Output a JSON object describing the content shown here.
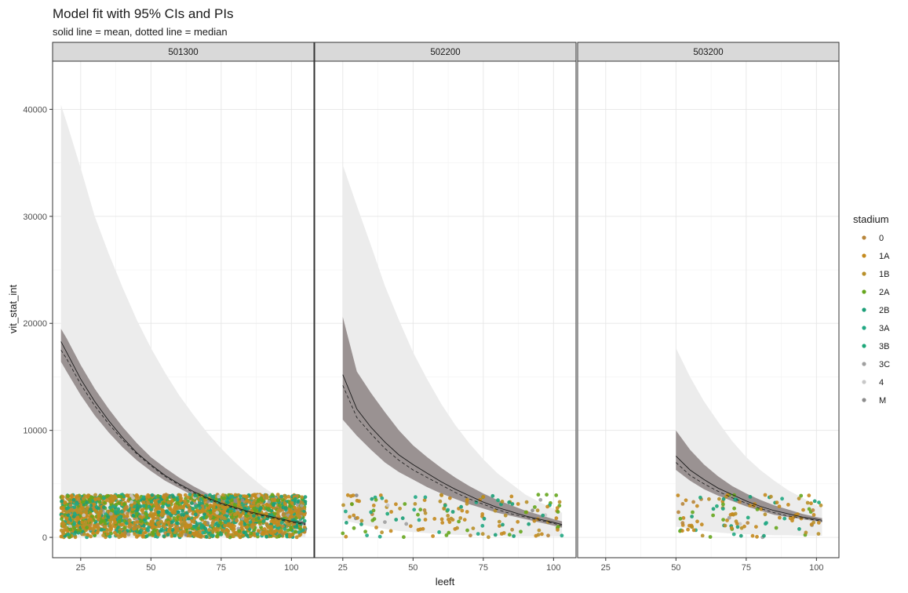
{
  "chart_data": {
    "type": "line",
    "title": "Model fit with 95% CIs and PIs",
    "subtitle": "solid line = mean, dotted line = median",
    "xlabel": "leeft",
    "ylabel": "vit_stat_int",
    "xlim": [
      15,
      108
    ],
    "ylim": [
      -1900,
      44500
    ],
    "x_ticks": [
      25,
      50,
      75,
      100
    ],
    "y_ticks": [
      0,
      10000,
      20000,
      30000,
      40000
    ],
    "grid": true,
    "legend": {
      "title": "stadium",
      "position": "right",
      "entries": [
        "0",
        "1A",
        "1B",
        "2A",
        "2B",
        "3A",
        "3B",
        "3C",
        "4",
        "M"
      ],
      "colors": [
        "#b8863b",
        "#c48a1e",
        "#b8902a",
        "#66a61e",
        "#1b9e77",
        "#22a884",
        "#1ea87a",
        "#a0a0a0",
        "#c8c8c8",
        "#8c8c8c"
      ]
    },
    "band_colors": {
      "pi": "#ebebeb",
      "ci": "#8c8282",
      "line": "#1a1a1a"
    },
    "panels": [
      {
        "strip": "501300",
        "x": [
          18,
          20,
          25,
          30,
          35,
          40,
          45,
          50,
          55,
          60,
          65,
          70,
          75,
          80,
          85,
          90,
          95,
          100,
          105
        ],
        "mean": [
          18300,
          17300,
          14800,
          12700,
          10900,
          9300,
          7900,
          6800,
          5800,
          5000,
          4300,
          3700,
          3200,
          2800,
          2400,
          2100,
          1800,
          1500,
          1300
        ],
        "median": [
          17500,
          16700,
          14300,
          12300,
          10600,
          9100,
          7800,
          6700,
          5700,
          4900,
          4200,
          3600,
          3100,
          2700,
          2300,
          2000,
          1700,
          1400,
          1200
        ],
        "ci_lower": [
          16400,
          15500,
          13300,
          11400,
          9800,
          8400,
          7200,
          6200,
          5300,
          4600,
          3900,
          3400,
          2900,
          2500,
          2200,
          1900,
          1600,
          1300,
          1100
        ],
        "ci_upper": [
          19500,
          18600,
          16100,
          13900,
          12000,
          10300,
          8800,
          7500,
          6500,
          5600,
          4800,
          4100,
          3600,
          3100,
          2700,
          2300,
          2000,
          1700,
          1500
        ],
        "pi_lower": [
          0,
          0,
          0,
          0,
          0,
          0,
          0,
          0,
          0,
          0,
          0,
          0,
          0,
          0,
          0,
          0,
          0,
          0,
          0
        ],
        "pi_upper": [
          40400,
          38800,
          34500,
          30000,
          26500,
          23300,
          20300,
          17700,
          15400,
          13300,
          11500,
          9800,
          8300,
          7000,
          5800,
          4700,
          3800,
          3100,
          2500
        ],
        "points_x_range": [
          18,
          105
        ],
        "points_y_range": [
          0,
          4000
        ],
        "points_count": 2600
      },
      {
        "strip": "502200",
        "x": [
          25,
          30,
          35,
          40,
          45,
          50,
          55,
          60,
          65,
          70,
          75,
          80,
          85,
          90,
          95,
          100,
          103
        ],
        "mean": [
          15200,
          12000,
          10300,
          8900,
          7700,
          6800,
          6000,
          5200,
          4500,
          3900,
          3300,
          2800,
          2400,
          2000,
          1700,
          1400,
          1200
        ],
        "median": [
          14200,
          11200,
          9700,
          8300,
          7200,
          6300,
          5600,
          4900,
          4200,
          3600,
          3100,
          2600,
          2200,
          1900,
          1600,
          1300,
          1100
        ],
        "ci_lower": [
          11000,
          9500,
          8200,
          7000,
          6100,
          5400,
          4700,
          4100,
          3600,
          3100,
          2700,
          2300,
          2000,
          1700,
          1400,
          1100,
          900
        ],
        "ci_upper": [
          20600,
          15500,
          13500,
          11700,
          10000,
          8600,
          7500,
          6500,
          5600,
          4800,
          4100,
          3500,
          3000,
          2500,
          2100,
          1700,
          1500
        ],
        "pi_lower": [
          1600,
          1300,
          1000,
          800,
          600,
          500,
          400,
          300,
          250,
          200,
          150,
          150,
          100,
          100,
          100,
          100,
          100
        ],
        "pi_upper": [
          34800,
          31000,
          27300,
          23500,
          20300,
          17300,
          14800,
          12500,
          10500,
          8800,
          7300,
          6000,
          5000,
          4000,
          3300,
          2700,
          2300
        ],
        "points_x_range": [
          25,
          103
        ],
        "points_y_range": [
          0,
          4000
        ],
        "points_count": 170
      },
      {
        "strip": "503200",
        "x": [
          50,
          55,
          60,
          65,
          70,
          75,
          80,
          85,
          90,
          95,
          100,
          102
        ],
        "mean": [
          7600,
          6300,
          5400,
          4600,
          4000,
          3400,
          2900,
          2500,
          2200,
          1900,
          1700,
          1600
        ],
        "median": [
          7000,
          5800,
          5000,
          4300,
          3700,
          3200,
          2700,
          2300,
          2000,
          1800,
          1600,
          1500
        ],
        "ci_lower": [
          6300,
          5300,
          4500,
          3900,
          3400,
          2900,
          2500,
          2100,
          1900,
          1700,
          1500,
          1400
        ],
        "ci_upper": [
          10000,
          8200,
          6800,
          5700,
          4800,
          4100,
          3500,
          3000,
          2600,
          2200,
          1900,
          1800
        ],
        "pi_lower": [
          1000,
          800,
          600,
          450,
          350,
          300,
          250,
          200,
          200,
          150,
          150,
          150
        ],
        "pi_upper": [
          17700,
          15000,
          12700,
          10800,
          9000,
          7500,
          6300,
          5300,
          4400,
          3700,
          3000,
          2800
        ],
        "points_x_range": [
          50,
          102
        ],
        "points_y_range": [
          0,
          4000
        ],
        "points_count": 120
      }
    ]
  }
}
